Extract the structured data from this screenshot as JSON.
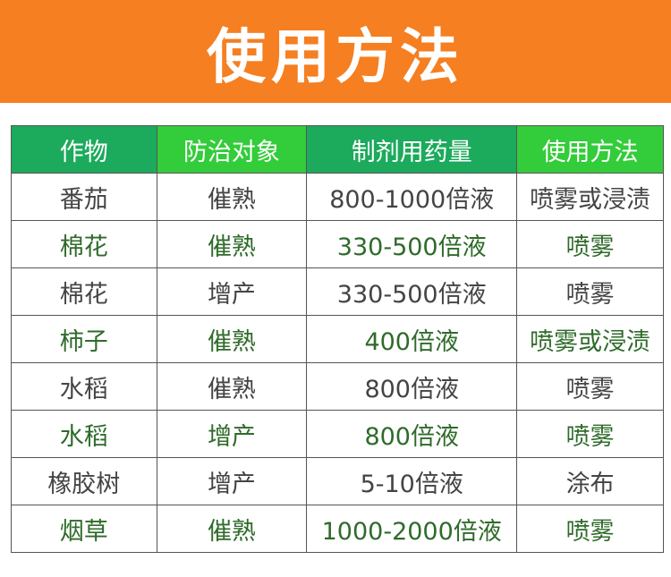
{
  "title": "使用方法",
  "colors": {
    "banner": "#f57f21",
    "header_dark": "#1caa5c",
    "header_light": "#33cc3a",
    "green_text": "#2f6b2a"
  },
  "headers": [
    "作物",
    "防治对象",
    "制剂用药量",
    "使用方法"
  ],
  "rows": [
    [
      "番茄",
      "催熟",
      "800-1000倍液",
      "喷雾或浸渍"
    ],
    [
      "棉花",
      "催熟",
      "330-500倍液",
      "喷雾"
    ],
    [
      "棉花",
      "增产",
      "330-500倍液",
      "喷雾"
    ],
    [
      "柿子",
      "催熟",
      "400倍液",
      "喷雾或浸渍"
    ],
    [
      "水稻",
      "催熟",
      "800倍液",
      "喷雾"
    ],
    [
      "水稻",
      "增产",
      "800倍液",
      "喷雾"
    ],
    [
      "橡胶树",
      "增产",
      "5-10倍液",
      "涂布"
    ],
    [
      "烟草",
      "催熟",
      "1000-2000倍液",
      "喷雾"
    ]
  ]
}
